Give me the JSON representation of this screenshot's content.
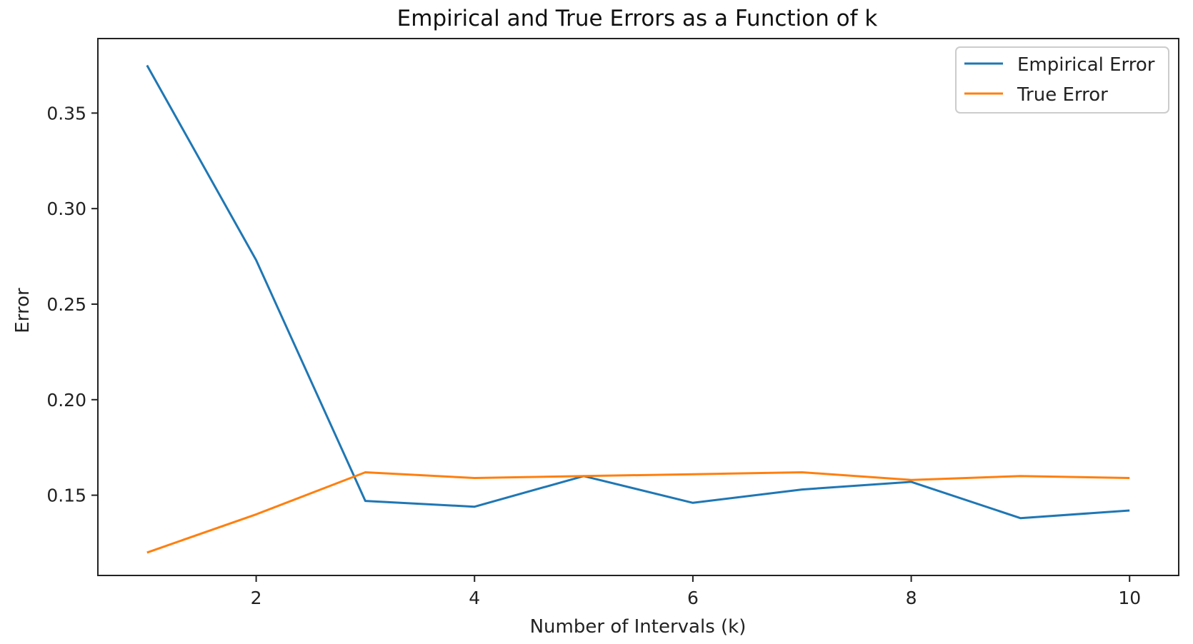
{
  "chart_data": {
    "type": "line",
    "title": "Empirical and True Errors as a Function of k",
    "xlabel": "Number of Intervals (k)",
    "ylabel": "Error",
    "x": [
      1,
      2,
      3,
      4,
      5,
      6,
      7,
      8,
      9,
      10
    ],
    "xlim": [
      0.55,
      10.45
    ],
    "ylim": [
      0.108,
      0.389
    ],
    "xticks": [
      2,
      4,
      6,
      8,
      10
    ],
    "xtick_labels": [
      "2",
      "4",
      "6",
      "8",
      "10"
    ],
    "yticks": [
      0.15,
      0.2,
      0.25,
      0.3,
      0.35
    ],
    "ytick_labels": [
      "0.15",
      "0.20",
      "0.25",
      "0.30",
      "0.35"
    ],
    "grid": false,
    "legend_position": "top-right",
    "series": [
      {
        "name": "Empirical Error",
        "color": "#1f77b4",
        "values": [
          0.375,
          0.273,
          0.147,
          0.144,
          0.16,
          0.146,
          0.153,
          0.157,
          0.138,
          0.142
        ]
      },
      {
        "name": "True Error",
        "color": "#ff7f0e",
        "values": [
          0.12,
          0.14,
          0.162,
          0.159,
          0.16,
          0.161,
          0.162,
          0.158,
          0.16,
          0.159
        ]
      }
    ]
  }
}
